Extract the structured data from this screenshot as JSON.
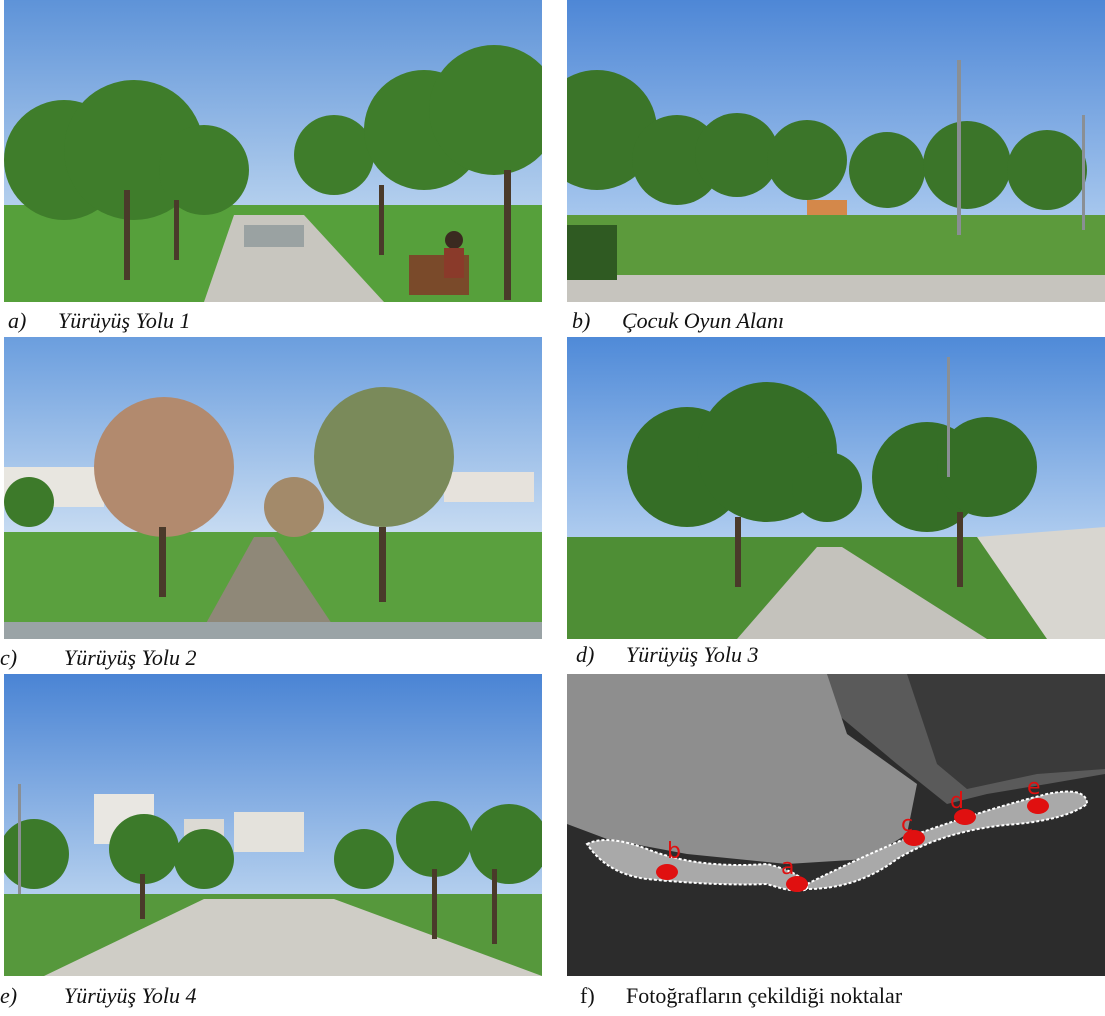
{
  "figures": [
    {
      "letter": "a)",
      "caption": "Yürüyüş Yolu 1"
    },
    {
      "letter": "b)",
      "caption": "Çocuk Oyun Alanı"
    },
    {
      "letter": "c)",
      "caption": "Yürüyüş Yolu 2"
    },
    {
      "letter": "d)",
      "caption": "Yürüyüş Yolu 3"
    },
    {
      "letter": "e)",
      "caption": "Yürüyüş Yolu 4"
    },
    {
      "letter": "f)",
      "caption": "Fotoğrafların çekildiği noktalar"
    }
  ],
  "map_markers": [
    "a",
    "b",
    "c",
    "d",
    "e"
  ],
  "colors": {
    "sky": "#6f9fdc",
    "grass": "#5a9a3a",
    "tree": "#3d7a2a",
    "path": "#c9c7c0",
    "marker": "#e01010"
  }
}
